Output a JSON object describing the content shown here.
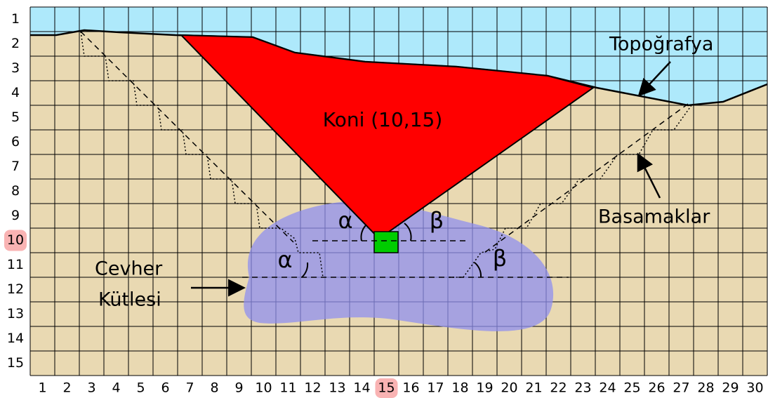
{
  "rows": [
    "1",
    "2",
    "3",
    "4",
    "5",
    "6",
    "7",
    "8",
    "9",
    "10",
    "11",
    "12",
    "13",
    "14",
    "15"
  ],
  "columns": [
    "1",
    "2",
    "3",
    "4",
    "5",
    "6",
    "7",
    "8",
    "9",
    "10",
    "11",
    "12",
    "13",
    "14",
    "15",
    "16",
    "17",
    "18",
    "19",
    "20",
    "21",
    "22",
    "23",
    "24",
    "25",
    "26",
    "27",
    "28",
    "29",
    "30"
  ],
  "highlight": {
    "row": 10,
    "column": 15
  },
  "labels": {
    "topography": "Topoğrafya",
    "cone": "Koni (10,15)",
    "benches": "Basamaklar",
    "ore_line1": "Cevher",
    "ore_line2": "Kütlesi",
    "alpha_top": "α",
    "beta_top": "β",
    "alpha_low": "α",
    "beta_low": "β"
  }
}
